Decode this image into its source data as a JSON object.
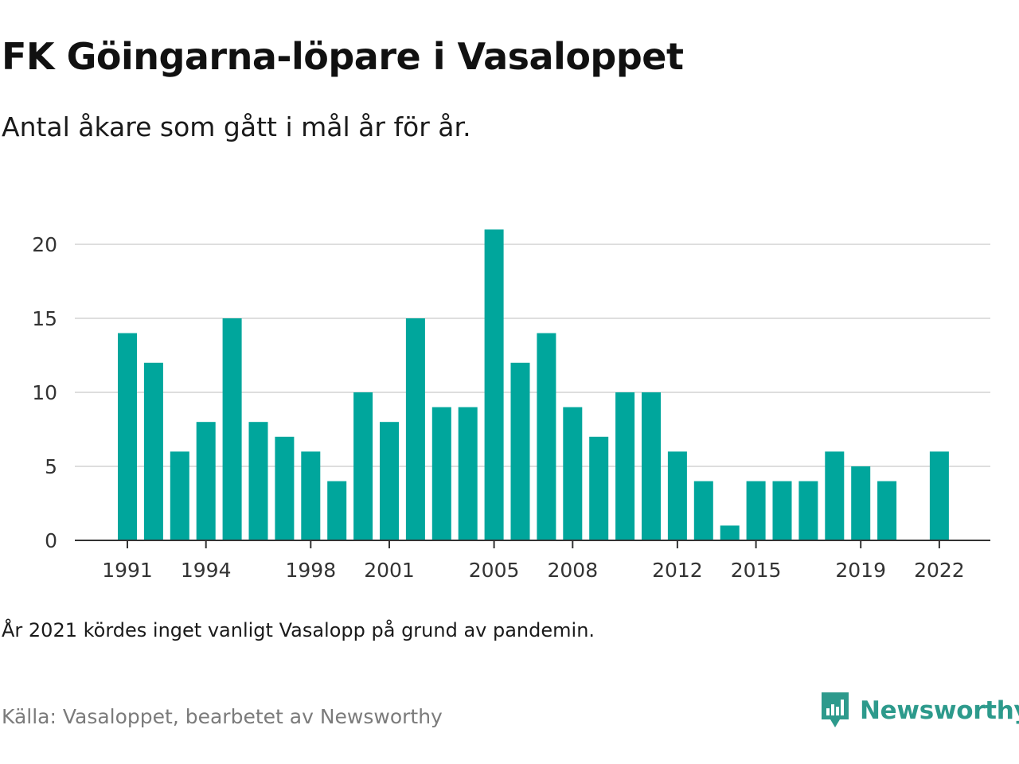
{
  "header": {
    "title": "FK Göingarna-löpare i Vasaloppet",
    "subtitle": "Antal åkare som gått i mål år för år."
  },
  "footer": {
    "note": "År 2021 kördes inget vanligt Vasalopp på grund av pandemin.",
    "source": "Källa: Vasaloppet, bearbetet av Newsworthy",
    "brand": "Newsworthy",
    "brand_icon": "newsworthy-logo-icon"
  },
  "colors": {
    "bar": "#00a69c",
    "grid": "#dedede",
    "axis": "#333333",
    "tick_label": "#333333",
    "brand": "#2d9a8c"
  },
  "chart_data": {
    "type": "bar",
    "categories": [
      1991,
      1992,
      1993,
      1994,
      1995,
      1996,
      1997,
      1998,
      1999,
      2000,
      2001,
      2002,
      2003,
      2004,
      2005,
      2006,
      2007,
      2008,
      2009,
      2010,
      2011,
      2012,
      2013,
      2014,
      2015,
      2016,
      2017,
      2018,
      2019,
      2020,
      2021,
      2022
    ],
    "values": [
      14,
      12,
      6,
      8,
      15,
      8,
      7,
      6,
      4,
      10,
      8,
      15,
      9,
      9,
      21,
      12,
      14,
      9,
      7,
      10,
      10,
      6,
      4,
      1,
      4,
      4,
      4,
      6,
      5,
      4,
      null,
      6
    ],
    "x_tick_labels": [
      "1991",
      "1994",
      "1998",
      "2001",
      "2005",
      "2008",
      "2012",
      "2015",
      "2019",
      "2022"
    ],
    "y_ticks": [
      0,
      5,
      10,
      15,
      20
    ],
    "ylim": [
      0,
      21.5
    ],
    "grid": true,
    "legend": "none"
  }
}
